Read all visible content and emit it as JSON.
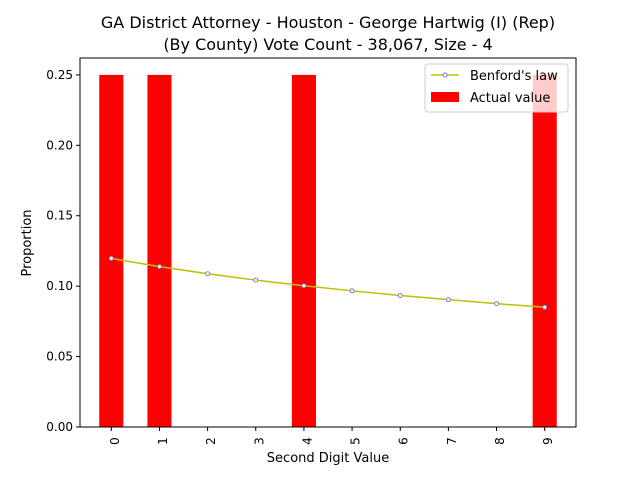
{
  "chart_data": {
    "type": "bar",
    "title_line1": "GA District Attorney - Houston - George Hartwig (I) (Rep)",
    "title_line2": "(By County) Vote Count - 38,067, Size - 4",
    "xlabel": "Second Digit Value",
    "ylabel": "Proportion",
    "categories": [
      "0",
      "1",
      "2",
      "3",
      "4",
      "5",
      "6",
      "7",
      "8",
      "9"
    ],
    "ylim": [
      0,
      0.262
    ],
    "yticks": [
      "0.00",
      "0.05",
      "0.10",
      "0.15",
      "0.20",
      "0.25"
    ],
    "series": [
      {
        "name": "Actual value",
        "kind": "bar",
        "color": "#ff0000",
        "values": [
          0.25,
          0.25,
          0,
          0,
          0.25,
          0,
          0,
          0,
          0,
          0.25
        ]
      },
      {
        "name": "Benford's law",
        "kind": "line",
        "color": "#bfbf00",
        "marker_color": "#7f7fbf",
        "values": [
          0.1197,
          0.1139,
          0.1088,
          0.1043,
          0.1003,
          0.0967,
          0.0934,
          0.0904,
          0.0876,
          0.085
        ]
      }
    ],
    "legend": {
      "placement": "top-right",
      "line_label": "Benford's law",
      "bar_label": "Actual value"
    },
    "grid": false
  }
}
